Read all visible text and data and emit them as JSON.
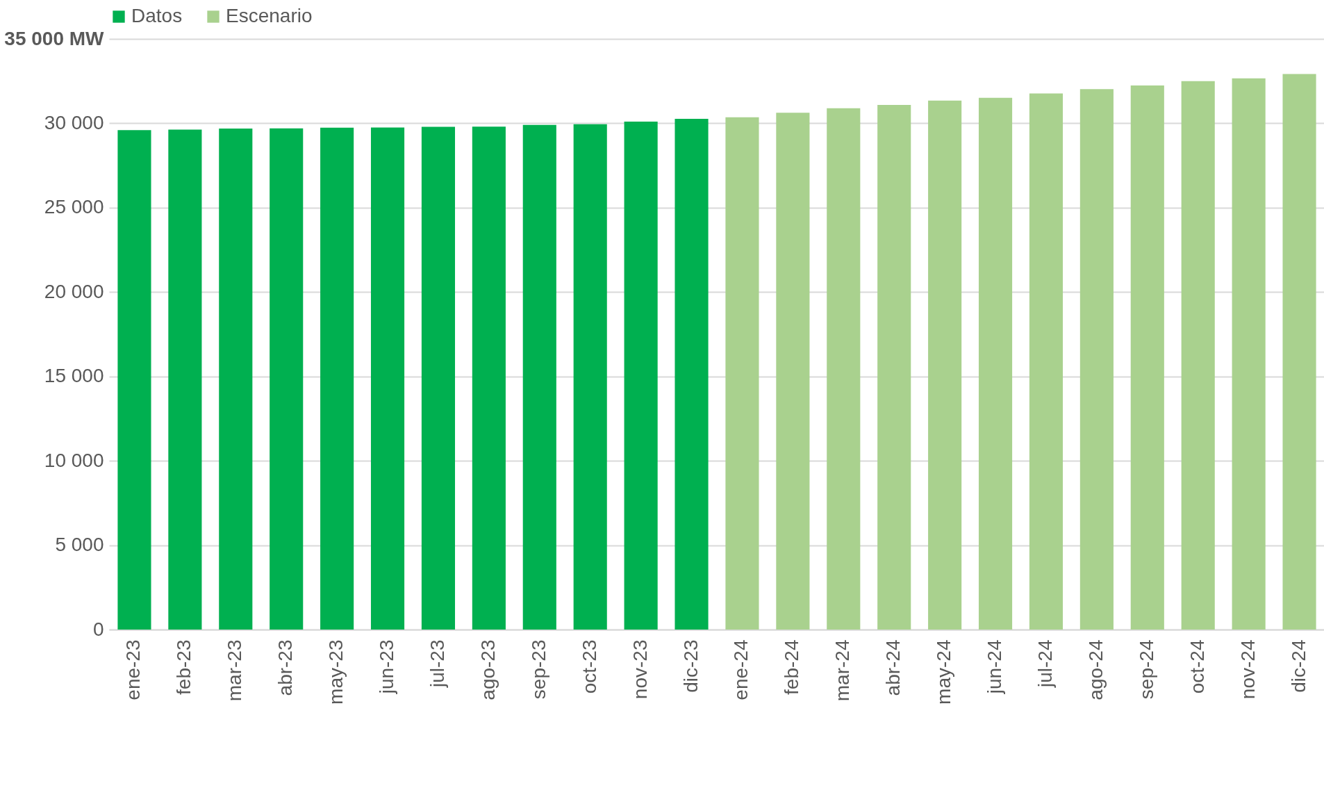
{
  "chart_data": {
    "type": "bar",
    "categories": [
      "ene-23",
      "feb-23",
      "mar-23",
      "abr-23",
      "may-23",
      "jun-23",
      "jul-23",
      "ago-23",
      "sep-23",
      "oct-23",
      "nov-23",
      "dic-23",
      "ene-24",
      "feb-24",
      "mar-24",
      "abr-24",
      "may-24",
      "jun-24",
      "jul-24",
      "ago-24",
      "sep-24",
      "oct-24",
      "nov-24",
      "dic-24"
    ],
    "series": [
      {
        "name": "Datos",
        "color": "#00b050",
        "values": [
          29600,
          29630,
          29690,
          29700,
          29740,
          29750,
          29790,
          29800,
          29900,
          29950,
          30100,
          30260,
          null,
          null,
          null,
          null,
          null,
          null,
          null,
          null,
          null,
          null,
          null,
          null
        ]
      },
      {
        "name": "Escenario",
        "color": "#a9d18e",
        "values": [
          null,
          null,
          null,
          null,
          null,
          null,
          null,
          null,
          null,
          null,
          null,
          null,
          30360,
          30630,
          30890,
          31090,
          31350,
          31510,
          31770,
          32030,
          32240,
          32500,
          32660,
          32920
        ]
      }
    ],
    "ylim": [
      0,
      35000
    ],
    "yticks": [
      {
        "value": 0,
        "label": "0"
      },
      {
        "value": 5000,
        "label": "5 000"
      },
      {
        "value": 10000,
        "label": "10 000"
      },
      {
        "value": 15000,
        "label": "15 000"
      },
      {
        "value": 20000,
        "label": "20 000"
      },
      {
        "value": 25000,
        "label": "25 000"
      },
      {
        "value": 30000,
        "label": "30 000"
      },
      {
        "value": 35000,
        "label": "35 000 MW"
      }
    ],
    "grid": "y",
    "legend": "top"
  }
}
